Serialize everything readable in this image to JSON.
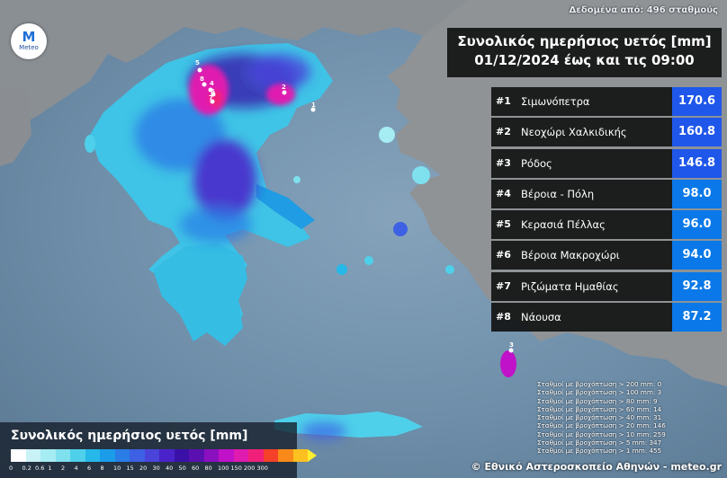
{
  "header": {
    "stations_label": "Δεδομένα από: 496 σταθμούς",
    "title_line1": "Συνολικός ημερήσιος υετός [mm]",
    "title_line2": "01/12/2024 έως και τις 09:00"
  },
  "logo": {
    "mark": "M",
    "text": "Meteo",
    "icon": "meteo-logo-icon"
  },
  "ranking": [
    {
      "rank": "#1",
      "name": "Σιμωνόπετρα",
      "value": "170.6",
      "color": "#1f57ea"
    },
    {
      "rank": "#2",
      "name": "Νεοχώρι Χαλκιδικής",
      "value": "160.8",
      "color": "#1f57ea"
    },
    {
      "rank": "#3",
      "name": "Ρόδος",
      "value": "146.8",
      "color": "#1f57ea"
    },
    {
      "rank": "#4",
      "name": "Βέροια - Πόλη",
      "value": "98.0",
      "color": "#0a78e8"
    },
    {
      "rank": "#5",
      "name": "Κερασιά Πέλλας",
      "value": "96.0",
      "color": "#0a78e8"
    },
    {
      "rank": "#6",
      "name": "Βέροια Μακροχώρι",
      "value": "94.0",
      "color": "#0a78e8"
    },
    {
      "rank": "#7",
      "name": "Ριζώματα Ημαθίας",
      "value": "92.8",
      "color": "#0a78e8"
    },
    {
      "rank": "#8",
      "name": "Νάουσα",
      "value": "87.2",
      "color": "#0a78e8"
    }
  ],
  "stats": [
    "Σταθμοί με βροχόπτωση > 200 mm: 0",
    "Σταθμοί με βροχόπτωση > 100 mm: 3",
    "Σταθμοί με βροχόπτωση > 80 mm: 9",
    "Σταθμοί με βροχόπτωση > 60 mm: 14",
    "Σταθμοί με βροχόπτωση > 40 mm: 31",
    "Σταθμοί με βροχόπτωση > 20 mm: 146",
    "Σταθμοί με βροχόπτωση > 10 mm: 259",
    "Σταθμοί με βροχόπτωση > 5 mm: 347",
    "Σταθμοί με βροχόπτωση > 1 mm: 455"
  ],
  "legend": {
    "title": "Συνολικός ημερήσιος υετός [mm]",
    "ticks": [
      "0",
      "0.2",
      "0.6",
      "1",
      "2",
      "4",
      "6",
      "8",
      "10",
      "15",
      "20",
      "30",
      "40",
      "50",
      "60",
      "80",
      "100",
      "150",
      "200",
      "300"
    ],
    "colors": [
      "#ffffff",
      "#c8f2f6",
      "#a6ecf3",
      "#7fe0ee",
      "#4fd0ea",
      "#25b8e8",
      "#1a9ce8",
      "#2a7de6",
      "#3d60e4",
      "#4a44db",
      "#4a22c9",
      "#3a10a8",
      "#5a0fb0",
      "#8a10c0",
      "#c012c8",
      "#e01bb0",
      "#f0207a",
      "#f5402a",
      "#f98a1a",
      "#fcc020"
    ]
  },
  "markers": [
    "5",
    "8",
    "4",
    "6",
    "7",
    "2",
    "1",
    "3"
  ],
  "credit": "© Εθνικό Αστεροσκοπείο Αθηνών - meteo.gr"
}
